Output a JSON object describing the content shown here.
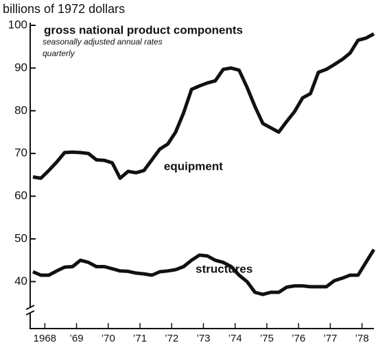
{
  "chart_data": {
    "type": "line",
    "y_axis_label": "billions of 1972 dollars",
    "title": "gross national product components",
    "subtitle": [
      "seasonally adjusted annual rates",
      "quarterly"
    ],
    "x": [
      1968.125,
      1968.375,
      1968.625,
      1968.875,
      1969.125,
      1969.375,
      1969.625,
      1969.875,
      1970.125,
      1970.375,
      1970.625,
      1970.875,
      1971.125,
      1971.375,
      1971.625,
      1971.875,
      1972.125,
      1972.375,
      1972.625,
      1972.875,
      1973.125,
      1973.375,
      1973.625,
      1973.875,
      1974.125,
      1974.375,
      1974.625,
      1974.875,
      1975.125,
      1975.375,
      1975.625,
      1975.875,
      1976.125,
      1976.375,
      1976.625,
      1976.875,
      1977.125,
      1977.375,
      1977.625,
      1977.875,
      1978.125,
      1978.375,
      1978.625,
      1978.875
    ],
    "series": [
      {
        "name": "equipment",
        "color": "#111111",
        "values": [
          64.5,
          64.2,
          66,
          68,
          70.2,
          70.3,
          70.2,
          70,
          68.5,
          68.4,
          67.8,
          64.2,
          65.8,
          65.5,
          66,
          68.5,
          71,
          72.2,
          75,
          79.5,
          85,
          85.8,
          86.5,
          87,
          89.7,
          90,
          89.5,
          85.5,
          81,
          77,
          76,
          75,
          77.5,
          79.8,
          83,
          84,
          89,
          89.7,
          90.8,
          92,
          93.5,
          96.5,
          97,
          98
        ]
      },
      {
        "name": "structures",
        "color": "#111111",
        "values": [
          42.3,
          41.5,
          41.5,
          42.5,
          43.4,
          43.5,
          45,
          44.5,
          43.5,
          43.5,
          43,
          42.5,
          42.4,
          42,
          41.8,
          41.5,
          42.3,
          42.5,
          42.8,
          43.5,
          45,
          46.2,
          46,
          45,
          44.5,
          43.5,
          41.5,
          40,
          37.5,
          37,
          37.5,
          37.5,
          38.7,
          39,
          39,
          38.8,
          38.8,
          38.8,
          40.2,
          40.8,
          41.5,
          41.5,
          44.5,
          47.5
        ]
      }
    ],
    "xlim": [
      1967.9,
      1979.0
    ],
    "ylim": [
      29,
      100
    ],
    "yticks": [
      40,
      50,
      60,
      70,
      80,
      90,
      100
    ],
    "xticks": [
      {
        "value": 1968.5,
        "label": "1968"
      },
      {
        "value": 1969.5,
        "label": "’69"
      },
      {
        "value": 1970.5,
        "label": "’70"
      },
      {
        "value": 1971.5,
        "label": "’71"
      },
      {
        "value": 1972.5,
        "label": "’72"
      },
      {
        "value": 1973.5,
        "label": "’73"
      },
      {
        "value": 1974.5,
        "label": "’74"
      },
      {
        "value": 1975.5,
        "label": "’75"
      },
      {
        "value": 1976.5,
        "label": "’76"
      },
      {
        "value": 1977.5,
        "label": "’77"
      },
      {
        "value": 1978.5,
        "label": "’78"
      }
    ]
  }
}
